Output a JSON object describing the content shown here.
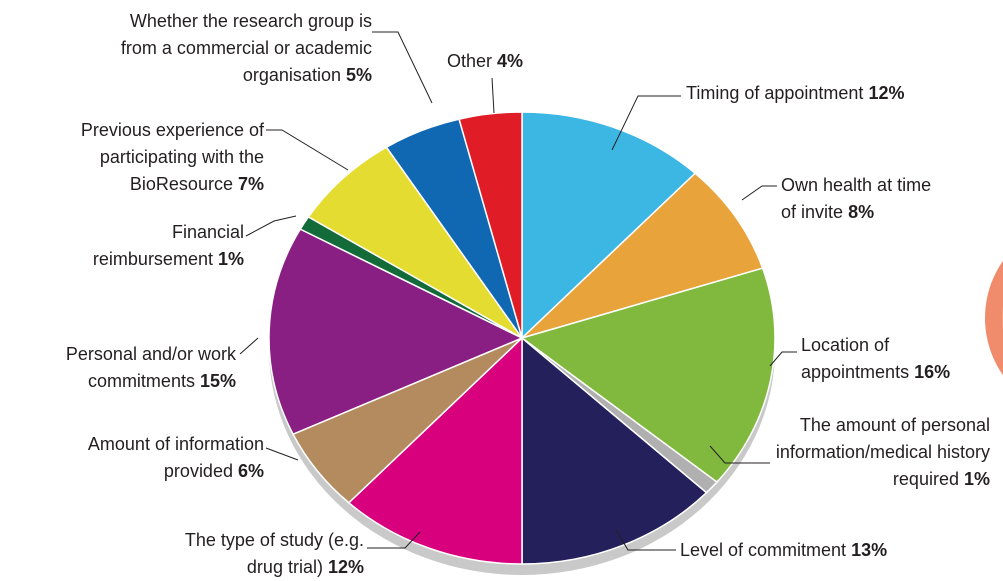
{
  "chart_data": {
    "type": "pie",
    "categories": [
      "Timing of appointment",
      "Own health at time of invite",
      "Location of appointments",
      "The amount of personal information/medical history required",
      "Level of commitment",
      "The type of study (e.g. drug trial)",
      "Amount of information provided",
      "Personal and/or work commitments",
      "Financial reimbursement",
      "Previous experience of participating with the BioResource",
      "Whether the research group is from a commercial or academic organisation",
      "Other"
    ],
    "values": [
      12,
      8,
      16,
      1,
      13,
      12,
      6,
      15,
      1,
      7,
      5,
      4
    ],
    "value_labels": [
      "12%",
      "8%",
      "16%",
      "1%",
      "13%",
      "12%",
      "6%",
      "15%",
      "1%",
      "7%",
      "5%",
      "4%"
    ],
    "colors": [
      "#3cb7e4",
      "#e8a43b",
      "#80b93d",
      "#b0b0b0",
      "#23205b",
      "#d9007e",
      "#b38b5e",
      "#891e83",
      "#136b3a",
      "#e4dc30",
      "#1168b2",
      "#e01d26"
    ]
  }
}
